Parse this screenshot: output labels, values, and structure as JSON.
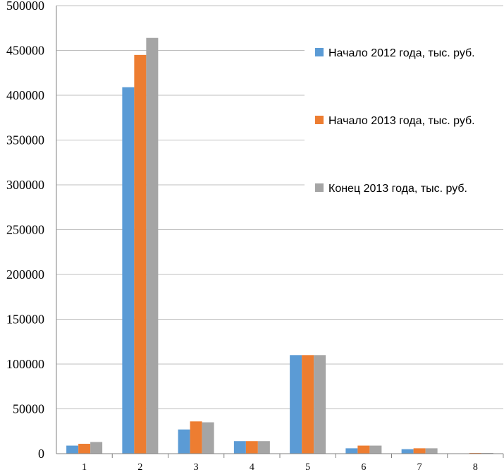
{
  "chart_data": {
    "type": "bar",
    "categories": [
      "1",
      "2",
      "3",
      "4",
      "5",
      "6",
      "7",
      "8"
    ],
    "series": [
      {
        "name": "Начало 2012 года, тыс. руб.",
        "values": [
          9000,
          409000,
          27000,
          14000,
          110000,
          6000,
          5000,
          0
        ],
        "color": "#5B9BD5"
      },
      {
        "name": "Начало 2013 года, тыс. руб.",
        "values": [
          11000,
          445000,
          36000,
          14000,
          110000,
          9000,
          6000,
          800
        ],
        "color": "#ED7D31"
      },
      {
        "name": "Конец 2013 года, тыс. руб.",
        "values": [
          13000,
          464000,
          35000,
          14000,
          110000,
          9000,
          6000,
          800
        ],
        "color": "#A5A5A5"
      }
    ],
    "yticks": [
      "0",
      "50000",
      "100000",
      "150000",
      "200000",
      "250000",
      "300000",
      "350000",
      "400000",
      "450000",
      "500000"
    ],
    "ylim": [
      0,
      500000
    ],
    "grid": true,
    "legend_position": "right"
  }
}
